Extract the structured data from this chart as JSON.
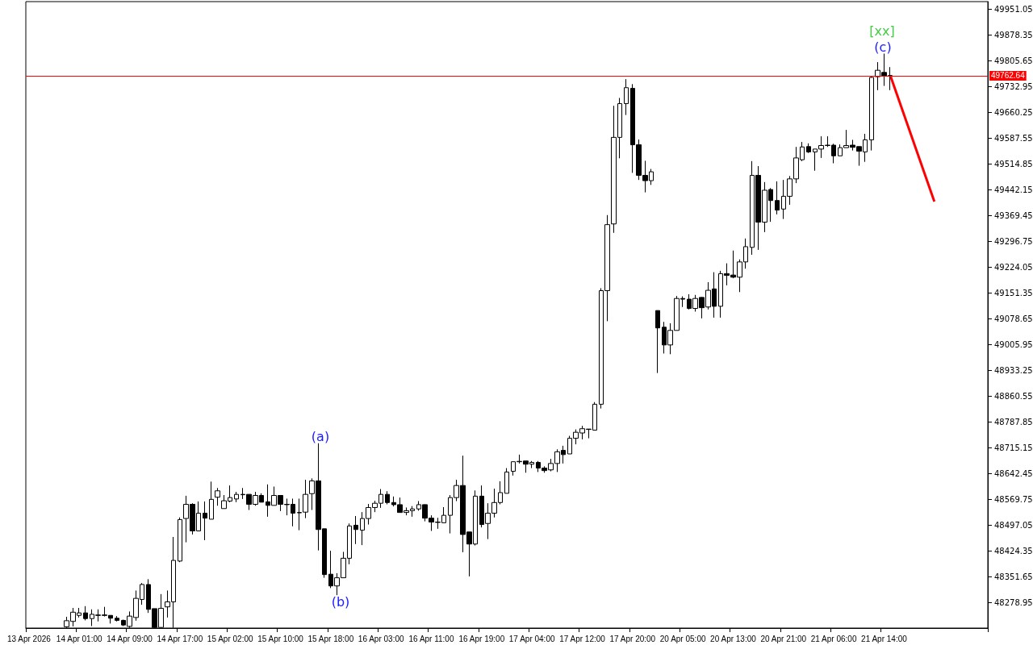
{
  "chart_data": {
    "type": "candlestick",
    "categories": [
      "13 Apr 2026",
      null,
      null,
      null,
      null,
      null,
      null,
      null,
      "14 Apr 01:00",
      null,
      null,
      null,
      null,
      null,
      null,
      null,
      "14 Apr 09:00",
      null,
      null,
      null,
      null,
      null,
      null,
      null,
      "14 Apr 17:00",
      null,
      null,
      null,
      null,
      null,
      null,
      null,
      "15 Apr 02:00",
      null,
      null,
      null,
      null,
      null,
      null,
      null,
      "15 Apr 10:00",
      null,
      null,
      null,
      null,
      null,
      null,
      null,
      "15 Apr 18:00",
      null,
      null,
      null,
      null,
      null,
      null,
      null,
      "16 Apr 03:00",
      null,
      null,
      null,
      null,
      null,
      null,
      null,
      "16 Apr 11:00",
      null,
      null,
      null,
      null,
      null,
      null,
      null,
      "16 Apr 19:00",
      null,
      null,
      null,
      null,
      null,
      null,
      null,
      "17 Apr 04:00",
      null,
      null,
      null,
      null,
      null,
      null,
      null,
      "17 Apr 12:00",
      null,
      null,
      null,
      null,
      null,
      null,
      null,
      "17 Apr 20:00",
      null,
      null,
      null,
      null,
      null,
      null,
      null,
      "20 Apr 05:00",
      null,
      null,
      null,
      null,
      null,
      null,
      null,
      "20 Apr 13:00",
      null,
      null,
      null,
      null,
      null,
      null,
      null,
      "20 Apr 21:00",
      null,
      null,
      null,
      null,
      null,
      null,
      null,
      "21 Apr 06:00",
      null,
      null,
      null,
      null,
      null,
      null,
      null,
      "21 Apr 14:00",
      null,
      null,
      null,
      null,
      null,
      null,
      null,
      null,
      null,
      null,
      null,
      null,
      null,
      null,
      null,
      null
    ],
    "ohlc": [
      null,
      null,
      null,
      null,
      null,
      null,
      [
        48210,
        48238,
        48207,
        48227
      ],
      [
        48225,
        48263,
        48211,
        48251
      ],
      [
        48242,
        48263,
        48236,
        48249
      ],
      [
        48249,
        48268,
        48228,
        48233
      ],
      [
        48233,
        48259,
        48212,
        48245
      ],
      [
        48243,
        48259,
        48225,
        48242
      ],
      [
        48243,
        48266,
        48239,
        48242
      ],
      [
        48242,
        48242,
        48219,
        48234
      ],
      [
        48234,
        48240,
        48225,
        48228
      ],
      [
        48228,
        48230,
        48212,
        48215
      ],
      [
        48211,
        48253,
        48207,
        48240
      ],
      [
        48236,
        48312,
        48227,
        48290
      ],
      [
        48287,
        48333,
        48272,
        48329
      ],
      [
        48329,
        48344,
        48249,
        48259
      ],
      [
        48261,
        48261,
        48207,
        48208
      ],
      [
        48208,
        48302,
        48207,
        48262
      ],
      [
        48266,
        48312,
        48236,
        48280
      ],
      [
        48280,
        48463,
        48207,
        48397
      ],
      [
        48395,
        48518,
        48392,
        48512
      ],
      [
        48515,
        48579,
        48448,
        48555
      ],
      [
        48555,
        48558,
        48470,
        48480
      ],
      [
        48480,
        48563,
        48480,
        48530
      ],
      [
        48530,
        48563,
        48454,
        48516
      ],
      [
        48513,
        48619,
        48513,
        48569
      ],
      [
        48575,
        48601,
        48551,
        48593
      ],
      [
        48543,
        48581,
        48543,
        48565
      ],
      [
        48564,
        48608,
        48561,
        48574
      ],
      [
        48570,
        48590,
        48561,
        48583
      ],
      [
        48583,
        48601,
        48570,
        48582
      ],
      [
        48583,
        48583,
        48539,
        48555
      ],
      [
        48555,
        48590,
        48551,
        48580
      ],
      [
        48580,
        48586,
        48561,
        48561
      ],
      [
        48562,
        48611,
        48520,
        48552
      ],
      [
        48552,
        48605,
        48552,
        48580
      ],
      [
        48580,
        48580,
        48536,
        48555
      ],
      [
        48555,
        48571,
        48524,
        48554
      ],
      [
        48555,
        48571,
        48493,
        48530
      ],
      [
        48531,
        48571,
        48482,
        48532
      ],
      [
        48533,
        48624,
        48516,
        48583
      ],
      [
        48585,
        48628,
        48539,
        48621
      ],
      [
        48621,
        48727,
        48425,
        48484
      ],
      [
        48486,
        48486,
        48348,
        48357
      ],
      [
        48358,
        48424,
        48319,
        48325
      ],
      [
        48325,
        48361,
        48299,
        48348
      ],
      [
        48348,
        48421,
        48348,
        48403
      ],
      [
        48403,
        48501,
        48386,
        48494
      ],
      [
        48496,
        48522,
        48443,
        48484
      ],
      [
        48482,
        48533,
        48440,
        48515
      ],
      [
        48515,
        48556,
        48498,
        48546
      ],
      [
        48546,
        48565,
        48533,
        48558
      ],
      [
        48558,
        48598,
        48545,
        48583
      ],
      [
        48583,
        48592,
        48555,
        48560
      ],
      [
        48560,
        48577,
        48549,
        48554
      ],
      [
        48554,
        48574,
        48532,
        48532
      ],
      [
        48532,
        48546,
        48524,
        48537
      ],
      [
        48537,
        48550,
        48520,
        48542
      ],
      [
        48542,
        48564,
        48537,
        48554
      ],
      [
        48554,
        48555,
        48507,
        48516
      ],
      [
        48516,
        48524,
        48480,
        48505
      ],
      [
        48505,
        48517,
        48486,
        48504
      ],
      [
        48503,
        48547,
        48503,
        48524
      ],
      [
        48524,
        48581,
        48473,
        48574
      ],
      [
        48574,
        48624,
        48564,
        48608
      ],
      [
        48608,
        48692,
        48420,
        48470
      ],
      [
        48477,
        48477,
        48352,
        48443
      ],
      [
        48443,
        48594,
        48439,
        48578
      ],
      [
        48578,
        48608,
        48490,
        48498
      ],
      [
        48501,
        48558,
        48457,
        48530
      ],
      [
        48530,
        48599,
        48518,
        48560
      ],
      [
        48560,
        48620,
        48555,
        48588
      ],
      [
        48586,
        48657,
        48586,
        48646
      ],
      [
        48648,
        48675,
        48636,
        48675
      ],
      [
        48675,
        48695,
        48670,
        48676
      ],
      [
        48677,
        48677,
        48644,
        48668
      ],
      [
        48668,
        48677,
        48657,
        48673
      ],
      [
        48673,
        48677,
        48646,
        48657
      ],
      [
        48657,
        48662,
        48644,
        48650
      ],
      [
        48652,
        48683,
        48648,
        48670
      ],
      [
        48670,
        48710,
        48646,
        48703
      ],
      [
        48707,
        48720,
        48670,
        48695
      ],
      [
        48697,
        48748,
        48697,
        48741
      ],
      [
        48741,
        48766,
        48724,
        48758
      ],
      [
        48756,
        48776,
        48738,
        48768
      ],
      [
        48767,
        48767,
        48741,
        48766
      ],
      [
        48764,
        48843,
        48764,
        48837
      ],
      [
        48837,
        49164,
        48825,
        49157
      ],
      [
        49157,
        49370,
        49071,
        49343
      ],
      [
        49345,
        49678,
        49320,
        49589
      ],
      [
        49589,
        49700,
        49530,
        49684
      ],
      [
        49684,
        49753,
        49652,
        49729
      ],
      [
        49727,
        49739,
        49489,
        49568
      ],
      [
        49568,
        49583,
        49469,
        49482
      ],
      [
        49482,
        49523,
        49434,
        49467
      ],
      [
        49467,
        49500,
        49455,
        49492
      ],
      [
        49101,
        49101,
        48925,
        49052
      ],
      [
        49054,
        49069,
        48980,
        49004
      ],
      [
        49004,
        49065,
        48978,
        49045
      ],
      [
        49045,
        49142,
        49045,
        49135
      ],
      [
        49135,
        49141,
        49111,
        49133
      ],
      [
        49133,
        49147,
        49104,
        49107
      ],
      [
        49107,
        49145,
        49098,
        49135
      ],
      [
        49138,
        49139,
        49079,
        49109
      ],
      [
        49111,
        49181,
        49104,
        49158
      ],
      [
        49162,
        49209,
        49081,
        49113
      ],
      [
        49113,
        49213,
        49081,
        49205
      ],
      [
        49205,
        49234,
        49172,
        49200
      ],
      [
        49201,
        49270,
        49192,
        49195
      ],
      [
        49195,
        49245,
        49153,
        49238
      ],
      [
        49238,
        49304,
        49219,
        49281
      ],
      [
        49279,
        49522,
        49258,
        49482
      ],
      [
        49482,
        49508,
        49272,
        49350
      ],
      [
        49350,
        49463,
        49322,
        49440
      ],
      [
        49442,
        49446,
        49351,
        49411
      ],
      [
        49411,
        49465,
        49372,
        49384
      ],
      [
        49387,
        49469,
        49359,
        49423
      ],
      [
        49423,
        49480,
        49399,
        49472
      ],
      [
        49472,
        49562,
        49460,
        49531
      ],
      [
        49526,
        49576,
        49522,
        49562
      ],
      [
        49563,
        49572,
        49545,
        49548
      ],
      [
        49548,
        49556,
        49495,
        49556
      ],
      [
        49556,
        49592,
        49531,
        49566
      ],
      [
        49566,
        49592,
        49562,
        49567
      ],
      [
        49567,
        49571,
        49516,
        49537
      ],
      [
        49537,
        49569,
        49537,
        49560
      ],
      [
        49560,
        49610,
        49560,
        49566
      ],
      [
        49567,
        49582,
        49552,
        49561
      ],
      [
        49563,
        49563,
        49509,
        49550
      ],
      [
        49548,
        49599,
        49520,
        49582
      ],
      [
        49582,
        49762,
        49552,
        49758
      ],
      [
        49760,
        49801,
        49722,
        49778
      ],
      [
        49772,
        49825,
        49734,
        49762
      ],
      [
        49763,
        49787,
        49722,
        49763
      ],
      null,
      null,
      null,
      null,
      null,
      null,
      null,
      null,
      null,
      null,
      null,
      null,
      null,
      null,
      null
    ],
    "series": [
      {
        "type": "line",
        "color": "#ff0000",
        "values": [
          null,
          null,
          null,
          null,
          null,
          null,
          null,
          null,
          null,
          null,
          null,
          null,
          null,
          null,
          null,
          null,
          null,
          null,
          null,
          null,
          null,
          null,
          null,
          null,
          null,
          null,
          null,
          null,
          null,
          null,
          null,
          null,
          null,
          null,
          null,
          null,
          null,
          null,
          null,
          null,
          null,
          null,
          null,
          null,
          null,
          null,
          null,
          null,
          null,
          null,
          null,
          null,
          null,
          null,
          null,
          null,
          null,
          null,
          null,
          null,
          null,
          null,
          null,
          null,
          null,
          null,
          null,
          null,
          null,
          null,
          null,
          null,
          null,
          null,
          null,
          null,
          null,
          null,
          null,
          null,
          null,
          null,
          null,
          null,
          null,
          null,
          null,
          null,
          null,
          null,
          null,
          null,
          null,
          null,
          null,
          null,
          null,
          null,
          null,
          null,
          null,
          null,
          null,
          null,
          null,
          null,
          null,
          null,
          null,
          null,
          null,
          null,
          null,
          null,
          null,
          null,
          null,
          null,
          null,
          null,
          null,
          null,
          null,
          null,
          null,
          null,
          null,
          null,
          null,
          null,
          null,
          null,
          null,
          null,
          null,
          null,
          null,
          49763,
          null,
          null,
          null,
          null,
          null,
          null,
          49408,
          null,
          null,
          null,
          null,
          null,
          null,
          null,
          null
        ]
      }
    ],
    "ylim": [
      48206.25,
      49971.5
    ],
    "yticks": [
      49951.05,
      49878.35,
      49805.65,
      49732.95,
      49660.25,
      49587.55,
      49514.85,
      49442.15,
      49369.45,
      49296.75,
      49224.05,
      49151.35,
      49078.65,
      49005.95,
      48933.25,
      48860.55,
      48787.85,
      48715.15,
      48642.45,
      48569.75,
      48497.05,
      48424.35,
      48351.65,
      48278.95
    ],
    "ref_lines": [
      {
        "axis": "y",
        "value": 49762.64,
        "label": "49762.64",
        "color": "#ff0000"
      }
    ],
    "annotations": [
      "(a)",
      "(b)",
      "(c)",
      "[xx]"
    ]
  }
}
